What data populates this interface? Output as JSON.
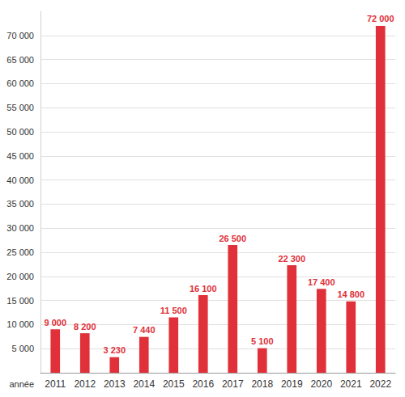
{
  "chart_data": {
    "type": "bar",
    "x_label": "année",
    "categories": [
      "2011",
      "2012",
      "2013",
      "2014",
      "2015",
      "2016",
      "2017",
      "2018",
      "2019",
      "2020",
      "2021",
      "2022"
    ],
    "values": [
      9000,
      8200,
      3230,
      7440,
      11500,
      16100,
      26500,
      5100,
      22300,
      17400,
      14800,
      72000
    ],
    "value_labels": [
      "9 000",
      "8 200",
      "3 230",
      "7 440",
      "11 500",
      "16 100",
      "26 500",
      "5 100",
      "22 300",
      "17 400",
      "14 800",
      "72 000"
    ],
    "color": "#e0313a",
    "ylim": [
      0,
      75000
    ],
    "yticks": [
      {
        "value": 5000,
        "label": "5 000"
      },
      {
        "value": 10000,
        "label": "10 000"
      },
      {
        "value": 15000,
        "label": "15 000"
      },
      {
        "value": 20000,
        "label": "20 000"
      },
      {
        "value": 25000,
        "label": "25 000"
      },
      {
        "value": 30000,
        "label": "30 000"
      },
      {
        "value": 35000,
        "label": "35 000"
      },
      {
        "value": 40000,
        "label": "40 000"
      },
      {
        "value": 45000,
        "label": "45 000"
      },
      {
        "value": 50000,
        "label": "50 000"
      },
      {
        "value": 55000,
        "label": "55 000"
      },
      {
        "value": 60000,
        "label": "60 000"
      },
      {
        "value": 65000,
        "label": "65 000"
      },
      {
        "value": 70000,
        "label": "70 000"
      }
    ],
    "grid": true,
    "data_labels": true
  }
}
